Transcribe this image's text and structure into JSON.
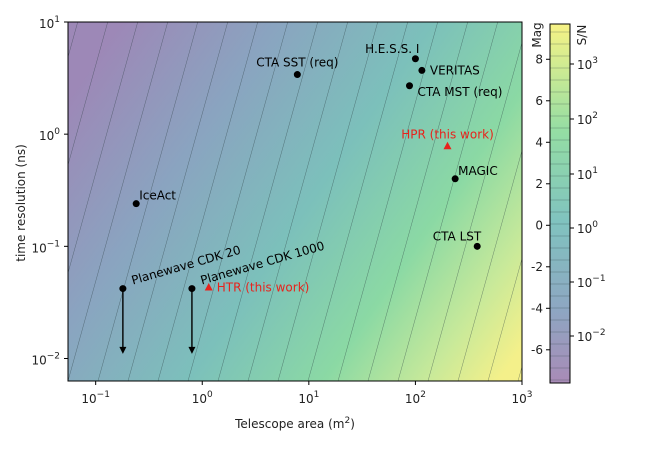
{
  "chart_data": {
    "type": "scatter",
    "xlabel": "Telescope area (m",
    "xlabel_sup": "2",
    "xlabel_end": ")",
    "ylabel": "time resolution (ns)",
    "xscale": "log",
    "yscale": "log",
    "xlim": [
      0.055,
      1000
    ],
    "ylim": [
      0.0063,
      10
    ],
    "x_ticks": [
      {
        "value": 0.1,
        "base": "10",
        "exp": "−1"
      },
      {
        "value": 1,
        "base": "10",
        "exp": "0"
      },
      {
        "value": 10,
        "base": "10",
        "exp": "1"
      },
      {
        "value": 100,
        "base": "10",
        "exp": "2"
      },
      {
        "value": 1000,
        "base": "10",
        "exp": "3"
      }
    ],
    "y_ticks": [
      {
        "value": 0.01,
        "base": "10",
        "exp": "−2"
      },
      {
        "value": 0.1,
        "base": "10",
        "exp": "−1"
      },
      {
        "value": 1,
        "base": "10",
        "exp": "0"
      },
      {
        "value": 10,
        "base": "10",
        "exp": "1"
      }
    ],
    "background": "S/N colormap increasing with telescope area / time resolution (viridis)",
    "colors": {
      "point": "#000000",
      "highlight": "#e8231c",
      "contour": "#2a3d3f",
      "colormap": [
        "#440154",
        "#3b528b",
        "#21918c",
        "#5ec962",
        "#fde725"
      ]
    },
    "points": [
      {
        "label": "H.E.S.S. I",
        "x": 100,
        "y": 4.7,
        "marker": "circle",
        "highlight": false,
        "label_pos": "upper-left"
      },
      {
        "label": "VERITAS",
        "x": 115,
        "y": 3.7,
        "marker": "circle",
        "highlight": false,
        "label_pos": "right"
      },
      {
        "label": "CTA MST (req)",
        "x": 88,
        "y": 2.7,
        "marker": "circle",
        "highlight": false,
        "label_pos": "lower-right"
      },
      {
        "label": "CTA SST (req)",
        "x": 7.8,
        "y": 3.4,
        "marker": "circle",
        "highlight": false,
        "label_pos": "above"
      },
      {
        "label": "HPR (this work)",
        "x": 200,
        "y": 0.78,
        "marker": "triangle",
        "highlight": true,
        "label_pos": "above"
      },
      {
        "label": "MAGIC",
        "x": 236,
        "y": 0.4,
        "marker": "circle",
        "highlight": false,
        "label_pos": "upper-right"
      },
      {
        "label": "IceAct",
        "x": 0.24,
        "y": 0.24,
        "marker": "circle",
        "highlight": false,
        "label_pos": "upper-right"
      },
      {
        "label": "CTA LST",
        "x": 380,
        "y": 0.1,
        "marker": "circle",
        "highlight": false,
        "label_pos": "upper-left"
      },
      {
        "label": "Planewave CDK 20",
        "x": 0.18,
        "y": 0.042,
        "marker": "circle",
        "highlight": false,
        "label_pos": "rotated",
        "arrow_to": 0.011
      },
      {
        "label": "Planewave CDK 1000",
        "x": 0.8,
        "y": 0.042,
        "marker": "circle",
        "highlight": false,
        "label_pos": "rotated",
        "arrow_to": 0.011
      },
      {
        "label": "HTR (this work)",
        "x": 1.15,
        "y": 0.043,
        "marker": "triangle",
        "highlight": true,
        "label_pos": "right"
      }
    ],
    "colorbar": {
      "label_left": "Mag",
      "label_right": "S/N",
      "mag_ticks": [
        "8",
        "6",
        "4",
        "2",
        "0",
        "-2",
        "-4",
        "-6"
      ],
      "mag_range": [
        9.7,
        -7.6
      ],
      "sn_ticks": [
        {
          "base": "10",
          "exp": "3"
        },
        {
          "base": "10",
          "exp": "2"
        },
        {
          "base": "10",
          "exp": "1"
        },
        {
          "base": "10",
          "exp": "0"
        },
        {
          "base": "10",
          "exp": "−1"
        },
        {
          "base": "10",
          "exp": "−2"
        }
      ]
    }
  }
}
